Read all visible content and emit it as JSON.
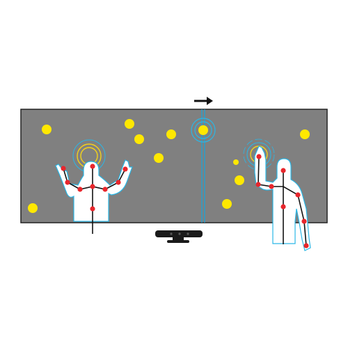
{
  "colors": {
    "screen": "#808080",
    "screen_border": "#222222",
    "ball": "#ffe800",
    "divider": "#00aeef",
    "joint": "#e8262c",
    "bone": "#111111",
    "outline": "#2ab7e6",
    "body_fill": "#ffffff",
    "ring_yellow": "#f2d21b",
    "ring_blue": "#2ab7e6",
    "arrow": "#111111",
    "sensor": "#1a1a1a"
  },
  "icons": {
    "direction": "arrow-right-icon",
    "sensor": "depth-camera-icon",
    "player_left": "person-arms-raised-icon",
    "player_right": "person-hand-raised-icon"
  },
  "balls_count_visible": 11
}
